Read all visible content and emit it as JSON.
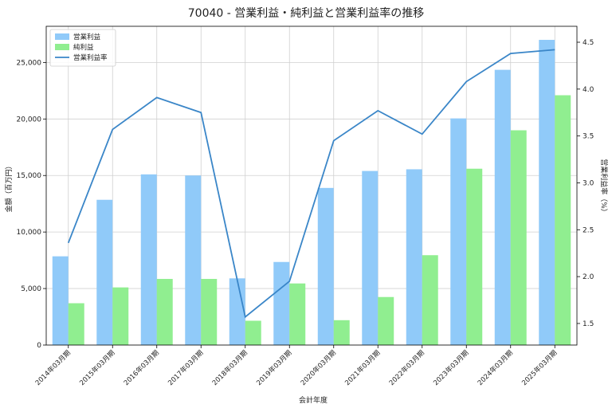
{
  "chart_data": {
    "type": "bar",
    "title": "70040 - 営業利益・純利益と営業利益率の推移",
    "xlabel": "会計年度",
    "ylabel": "金額（百万円）",
    "y2label": "営業利益率（%）",
    "categories": [
      "2014年03月期",
      "2015年03月期",
      "2016年03月期",
      "2017年03月期",
      "2018年03月期",
      "2019年03月期",
      "2020年03月期",
      "2021年03月期",
      "2022年03月期",
      "2023年03月期",
      "2024年03月期",
      "2025年03月期"
    ],
    "series": [
      {
        "name": "営業利益",
        "type": "bar",
        "axis": "left",
        "color": "#90caf9",
        "values": [
          7850,
          12850,
          15100,
          15000,
          5900,
          7350,
          13900,
          15400,
          15550,
          20050,
          24350,
          27000
        ]
      },
      {
        "name": "純利益",
        "type": "bar",
        "axis": "left",
        "color": "#90ee90",
        "values": [
          3700,
          5100,
          5850,
          5850,
          2150,
          5450,
          2200,
          4250,
          7950,
          15600,
          19000,
          22100
        ]
      },
      {
        "name": "営業利益率",
        "type": "line",
        "axis": "right",
        "color": "#3a86c8",
        "values": [
          2.36,
          3.57,
          3.91,
          3.75,
          1.57,
          1.95,
          3.45,
          3.77,
          3.52,
          4.08,
          4.38,
          4.42
        ]
      }
    ],
    "ylim": [
      0,
      28200
    ],
    "yticks": [
      0,
      5000,
      10000,
      15000,
      20000,
      25000
    ],
    "ytick_labels": [
      "0",
      "5,000",
      "10,000",
      "15,000",
      "20,000",
      "25,000"
    ],
    "y2lim": [
      1.27,
      4.67
    ],
    "y2ticks": [
      1.5,
      2.0,
      2.5,
      3.0,
      3.5,
      4.0,
      4.5
    ],
    "y2tick_labels": [
      "1.5",
      "2.0",
      "2.5",
      "3.0",
      "3.5",
      "4.0",
      "4.5"
    ],
    "grid": true,
    "legend_position": "top-left"
  }
}
